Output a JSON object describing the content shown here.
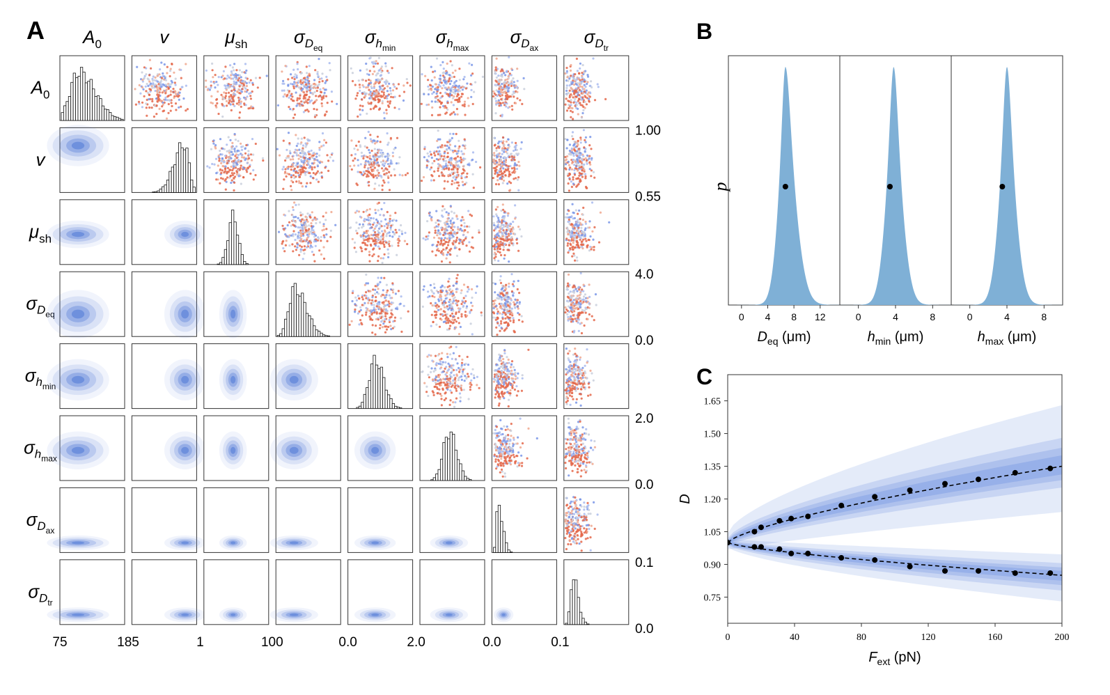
{
  "figure": {
    "panel_labels": [
      "A",
      "B",
      "C"
    ],
    "colors": {
      "kde": "#4f78d6",
      "posterior_fill": "#7fb0d6",
      "scatter_warm": "#e4674a",
      "scatter_cool": "#7a97e8",
      "scatter_neutral": "#c9cfdc",
      "band": "#6b8fe0",
      "frame": "#333333"
    }
  },
  "chart_data": [
    {
      "panel": "A",
      "type": "pairplot",
      "title": "",
      "parameters": [
        {
          "sym": "A",
          "sub": "0",
          "name": "A0"
        },
        {
          "sym": "v",
          "sub": "",
          "name": "v"
        },
        {
          "sym": "μ",
          "sub": "sh",
          "name": "mu_sh"
        },
        {
          "sym": "σ",
          "sub": "Deq",
          "name": "sigma_Deq"
        },
        {
          "sym": "σ",
          "sub": "hmin",
          "name": "sigma_hmin"
        },
        {
          "sym": "σ",
          "sub": "hmax",
          "name": "sigma_hmax"
        },
        {
          "sym": "σ",
          "sub": "Dax",
          "name": "sigma_Dax"
        },
        {
          "sym": "σ",
          "sub": "Dtr",
          "name": "sigma_Dtr"
        }
      ],
      "col_headers": [
        {
          "main": "A",
          "sub": "0"
        },
        {
          "main": "v",
          "sub": ""
        },
        {
          "main": "μ",
          "sub": "sh"
        },
        {
          "main": "σ",
          "sub": "Deq"
        },
        {
          "main": "σ",
          "sub": "hmin"
        },
        {
          "main": "σ",
          "sub": "hmax"
        },
        {
          "main": "σ",
          "sub": "Dax"
        },
        {
          "main": "σ",
          "sub": "Dtr"
        }
      ],
      "row_headers": [
        {
          "main": "A",
          "sub": "0"
        },
        {
          "main": "v",
          "sub": ""
        },
        {
          "main": "μ",
          "sub": "sh"
        },
        {
          "main": "σ",
          "sub": "Deq"
        },
        {
          "main": "σ",
          "sub": "hmin"
        },
        {
          "main": "σ",
          "sub": "hmax"
        },
        {
          "main": "σ",
          "sub": "Dax"
        },
        {
          "main": "σ",
          "sub": "Dtr"
        }
      ],
      "x_tick_pairs": [
        [
          "75",
          "185"
        ],
        [
          "",
          "1"
        ],
        [
          "",
          "100"
        ],
        [
          "",
          ""
        ],
        [
          "0.0",
          "2.0"
        ],
        [
          "",
          ""
        ],
        [
          "0.0",
          "0.1"
        ],
        [
          "",
          ""
        ]
      ],
      "right_ticks": [
        {
          "row": 1,
          "top": "1.00",
          "bottom": "0.55"
        },
        {
          "row": 2,
          "top": "",
          "bottom": ""
        },
        {
          "row": 3,
          "top": "4.0",
          "bottom": "0.0"
        },
        {
          "row": 5,
          "top": "2.0",
          "bottom": "0.0"
        },
        {
          "row": 7,
          "top": "0.1",
          "bottom": "0.0"
        }
      ],
      "marginal_modes": [
        0.28,
        0.82,
        0.45,
        0.28,
        0.42,
        0.45,
        0.08,
        0.12
      ],
      "marginal_widths": [
        0.2,
        0.12,
        0.08,
        0.14,
        0.12,
        0.11,
        0.05,
        0.06
      ],
      "marginal_skew": [
        0.9,
        -1.0,
        0.0,
        0.9,
        0.4,
        0.3,
        1.2,
        1.1
      ]
    },
    {
      "panel": "B",
      "type": "area",
      "ylabel": "p",
      "subplots": [
        {
          "xlabel_main": "D",
          "xlabel_sub": "eq",
          "xlabel_unit": " (μm)",
          "xlim": [
            -2,
            15
          ],
          "xticks": [
            "0",
            "4",
            "8",
            "12"
          ],
          "xtick_values": [
            0,
            4,
            8,
            12
          ],
          "peak": 6.7,
          "point_x": 6.7,
          "point_p": 0.4,
          "sigma_left": 1.1,
          "sigma_right": 1.6
        },
        {
          "xlabel_main": "h",
          "xlabel_sub": "min",
          "xlabel_unit": " (μm)",
          "xlim": [
            -2,
            10
          ],
          "xticks": [
            "0",
            "4",
            "8"
          ],
          "xtick_values": [
            0,
            4,
            8
          ],
          "peak": 3.8,
          "point_x": 3.4,
          "point_p": 0.4,
          "sigma_left": 0.85,
          "sigma_right": 0.95
        },
        {
          "xlabel_main": "h",
          "xlabel_sub": "max",
          "xlabel_unit": " (μm)",
          "xlim": [
            -2,
            10
          ],
          "xticks": [
            "0",
            "4",
            "8"
          ],
          "xtick_values": [
            0,
            4,
            8
          ],
          "peak": 4.0,
          "point_x": 3.5,
          "point_p": 0.4,
          "sigma_left": 0.85,
          "sigma_right": 0.95
        }
      ]
    },
    {
      "panel": "C",
      "type": "line",
      "xlabel_main": "F",
      "xlabel_sub": "ext",
      "xlabel_unit": " (pN)",
      "ylabel": "D",
      "xlim": [
        0,
        200
      ],
      "ylim": [
        0.63,
        1.77
      ],
      "xticks": [
        0,
        40,
        80,
        120,
        160,
        200
      ],
      "xtick_labels": [
        "0",
        "40",
        "80",
        "120",
        "160",
        "200"
      ],
      "yticks": [
        0.75,
        0.9,
        1.05,
        1.2,
        1.35,
        1.5,
        1.65
      ],
      "ytick_labels": [
        "0.75",
        "0.90",
        "1.05",
        "1.20",
        "1.35",
        "1.50",
        "1.65"
      ],
      "series": [
        {
          "name": "upper",
          "fit_end": 1.35,
          "x": [
            0,
            16,
            20,
            31,
            38,
            48,
            68,
            88,
            109,
            130,
            150,
            172,
            193
          ],
          "y": [
            1.0,
            1.05,
            1.07,
            1.1,
            1.11,
            1.12,
            1.17,
            1.21,
            1.24,
            1.27,
            1.29,
            1.32,
            1.34
          ],
          "band_half_widths": [
            0.28,
            0.13,
            0.085,
            0.05
          ]
        },
        {
          "name": "lower",
          "fit_end": 0.85,
          "x": [
            0,
            16,
            20,
            31,
            38,
            48,
            68,
            88,
            109,
            130,
            150,
            172,
            193
          ],
          "y": [
            1.0,
            0.98,
            0.98,
            0.97,
            0.95,
            0.95,
            0.93,
            0.92,
            0.89,
            0.87,
            0.87,
            0.86,
            0.86
          ],
          "band_half_widths": [
            0.12,
            0.07,
            0.045,
            0.025
          ]
        }
      ]
    }
  ]
}
